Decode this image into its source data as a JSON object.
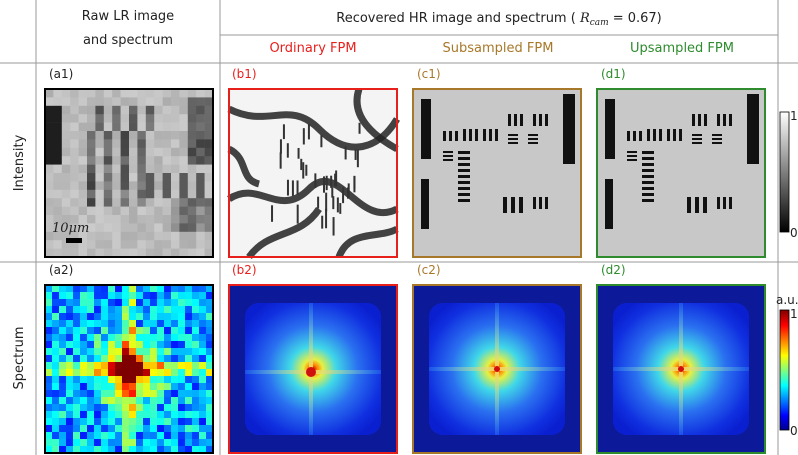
{
  "header": {
    "raw_title": [
      "Raw LR image",
      "and spectrum"
    ],
    "recovered_title": {
      "prefix": "Recovered HR image and spectrum (",
      "symbol": "R",
      "subscript": "cam",
      "suffix": "= 0.67)"
    },
    "methods": [
      {
        "label": "Ordinary FPM",
        "color": "#e8201c"
      },
      {
        "label": "Subsampled FPM",
        "color": "#a8782a"
      },
      {
        "label": "Upsampled FPM",
        "color": "#2e8b2e"
      }
    ]
  },
  "rows": [
    {
      "label": "Intensity",
      "panels": [
        "(a1)",
        "(b1)",
        "(c1)",
        "(d1)"
      ],
      "colorbar": {
        "max": "1",
        "min": "0"
      }
    },
    {
      "label": "Spectrum",
      "panels": [
        "(a2)",
        "(b2)",
        "(c2)",
        "(d2)"
      ],
      "colorbar": {
        "unit": "a.u.",
        "max": "1",
        "min": "0"
      }
    }
  ],
  "scale_bar": "10μm"
}
